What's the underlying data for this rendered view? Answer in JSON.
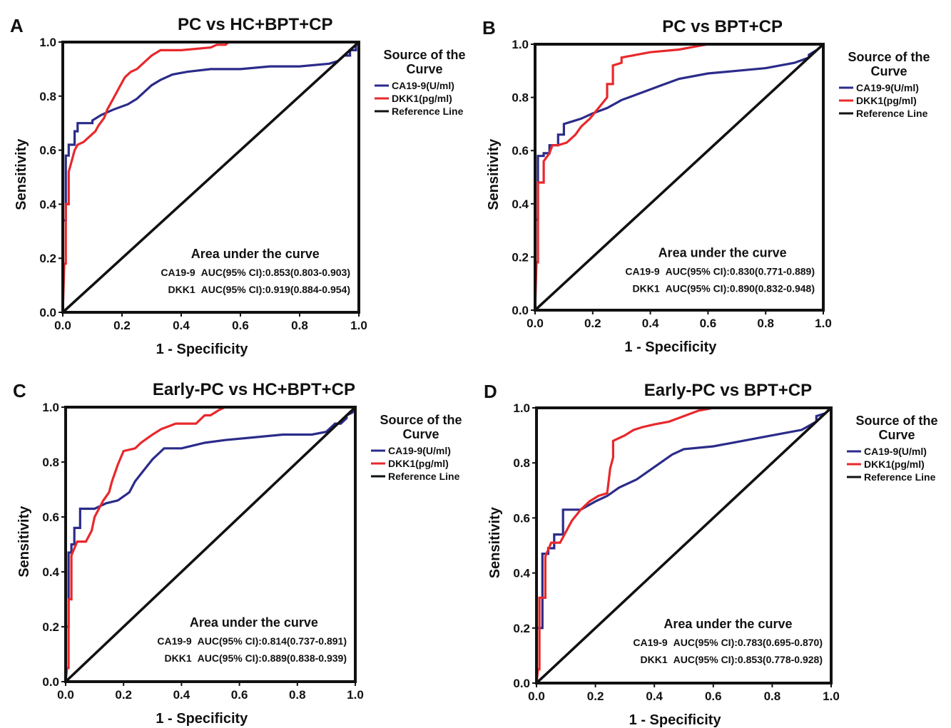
{
  "colors": {
    "ca199": "#2b2b8a",
    "dkk1": "#e8282b",
    "reference": "#111111",
    "frame": "#111111"
  },
  "chart_data": [
    {
      "type": "line",
      "panel": "A",
      "title": "PC vs HC+BPT+CP",
      "xlabel": "1 - Specificity",
      "ylabel": "Sensitivity",
      "xlim": [
        0,
        1
      ],
      "ylim": [
        0,
        1
      ],
      "x_ticks": [
        "0.0",
        "0.2",
        "0.4",
        "0.6",
        "0.8",
        "1.0"
      ],
      "y_ticks": [
        "0.0",
        "0.2",
        "0.4",
        "0.6",
        "0.8",
        "1.0"
      ],
      "legend": {
        "title_line1": "Source of the",
        "title_line2": "Curve",
        "placement": "right",
        "entries": [
          "CA19-9(U/ml)",
          "DKK1(pg/ml)",
          "Reference Line"
        ]
      },
      "auc": {
        "title": "Area under the curve",
        "rows": [
          {
            "marker": "CA19-9",
            "text": "AUC(95% CI):0.853(0.803-0.903)"
          },
          {
            "marker": "DKK1",
            "text": "AUC(95% CI):0.919(0.884-0.954)"
          }
        ]
      },
      "series": [
        {
          "name": "CA19-9(U/ml)",
          "x": [
            0,
            0,
            0.01,
            0.01,
            0.02,
            0.02,
            0.04,
            0.04,
            0.05,
            0.05,
            0.1,
            0.1,
            0.13,
            0.17,
            0.22,
            0.25,
            0.28,
            0.3,
            0.33,
            0.37,
            0.42,
            0.5,
            0.6,
            0.7,
            0.8,
            0.9,
            0.93,
            0.95,
            0.97,
            0.97,
            0.99,
            0.99,
            1
          ],
          "y": [
            0,
            0.34,
            0.34,
            0.58,
            0.58,
            0.62,
            0.62,
            0.67,
            0.67,
            0.7,
            0.7,
            0.71,
            0.73,
            0.75,
            0.77,
            0.79,
            0.82,
            0.84,
            0.86,
            0.88,
            0.89,
            0.9,
            0.9,
            0.91,
            0.91,
            0.92,
            0.93,
            0.95,
            0.95,
            0.97,
            0.97,
            1,
            1
          ]
        },
        {
          "name": "DKK1(pg/ml)",
          "x": [
            0,
            0.005,
            0.01,
            0.01,
            0.02,
            0.02,
            0.03,
            0.04,
            0.05,
            0.07,
            0.09,
            0.11,
            0.12,
            0.14,
            0.15,
            0.17,
            0.19,
            0.21,
            0.23,
            0.25,
            0.27,
            0.3,
            0.33,
            0.4,
            0.5,
            0.52,
            0.55,
            0.56
          ],
          "y": [
            0,
            0.18,
            0.18,
            0.4,
            0.4,
            0.52,
            0.56,
            0.6,
            0.62,
            0.63,
            0.65,
            0.67,
            0.69,
            0.72,
            0.75,
            0.79,
            0.83,
            0.87,
            0.89,
            0.9,
            0.92,
            0.95,
            0.97,
            0.97,
            0.98,
            0.99,
            0.99,
            1
          ]
        },
        {
          "name": "Reference Line",
          "x": [
            0,
            1
          ],
          "y": [
            0,
            1
          ]
        }
      ]
    },
    {
      "type": "line",
      "panel": "B",
      "title": "PC vs BPT+CP",
      "xlabel": "1 - Specificity",
      "ylabel": "Sensitivity",
      "xlim": [
        0,
        1
      ],
      "ylim": [
        0,
        1
      ],
      "x_ticks": [
        "0.0",
        "0.2",
        "0.4",
        "0.6",
        "0.8",
        "1.0"
      ],
      "y_ticks": [
        "0.0",
        "0.2",
        "0.4",
        "0.6",
        "0.8",
        "1.0"
      ],
      "legend": {
        "title_line1": "Source of the",
        "title_line2": "Curve",
        "placement": "right",
        "entries": [
          "CA19-9(U/ml)",
          "DKK1(pg/ml)",
          "Reference Line"
        ]
      },
      "auc": {
        "title": "Area under the curve",
        "rows": [
          {
            "marker": "CA19-9",
            "text": "AUC(95% CI):0.830(0.771-0.889)"
          },
          {
            "marker": "DKK1",
            "text": "AUC(95% CI):0.890(0.832-0.948)"
          }
        ]
      },
      "series": [
        {
          "name": "CA19-9(U/ml)",
          "x": [
            0,
            0,
            0.01,
            0.01,
            0.03,
            0.03,
            0.05,
            0.05,
            0.08,
            0.08,
            0.1,
            0.1,
            0.13,
            0.16,
            0.2,
            0.25,
            0.3,
            0.35,
            0.4,
            0.45,
            0.5,
            0.6,
            0.7,
            0.8,
            0.9,
            0.95,
            0.95,
            0.98,
            1
          ],
          "y": [
            0,
            0.34,
            0.34,
            0.58,
            0.58,
            0.59,
            0.59,
            0.62,
            0.62,
            0.66,
            0.66,
            0.7,
            0.71,
            0.72,
            0.74,
            0.76,
            0.79,
            0.81,
            0.83,
            0.85,
            0.87,
            0.89,
            0.9,
            0.91,
            0.93,
            0.95,
            0.96,
            0.98,
            1
          ]
        },
        {
          "name": "DKK1(pg/ml)",
          "x": [
            0,
            0.005,
            0.01,
            0.01,
            0.03,
            0.03,
            0.05,
            0.06,
            0.08,
            0.11,
            0.14,
            0.16,
            0.19,
            0.22,
            0.25,
            0.25,
            0.27,
            0.27,
            0.3,
            0.3,
            0.4,
            0.5,
            0.55,
            0.6
          ],
          "y": [
            0,
            0.18,
            0.18,
            0.48,
            0.48,
            0.56,
            0.59,
            0.62,
            0.62,
            0.63,
            0.66,
            0.69,
            0.72,
            0.76,
            0.8,
            0.85,
            0.85,
            0.92,
            0.93,
            0.95,
            0.97,
            0.98,
            0.99,
            1
          ]
        },
        {
          "name": "Reference Line",
          "x": [
            0,
            1
          ],
          "y": [
            0,
            1
          ]
        }
      ]
    },
    {
      "type": "line",
      "panel": "C",
      "title": "Early-PC vs HC+BPT+CP",
      "xlabel": "1 - Specificity",
      "ylabel": "Sensitivity",
      "xlim": [
        0,
        1
      ],
      "ylim": [
        0,
        1
      ],
      "x_ticks": [
        "0.0",
        "0.2",
        "0.4",
        "0.6",
        "0.8",
        "1.0"
      ],
      "y_ticks": [
        "0.0",
        "0.2",
        "0.4",
        "0.6",
        "0.8",
        "1.0"
      ],
      "legend": {
        "title_line1": "Source of the",
        "title_line2": "Curve",
        "placement": "right",
        "entries": [
          "CA19-9(U/ml)",
          "DKK1(pg/ml)",
          "Reference Line"
        ]
      },
      "auc": {
        "title": "Area under the curve",
        "rows": [
          {
            "marker": "CA19-9",
            "text": "AUC(95% CI):0.814(0.737-0.891)"
          },
          {
            "marker": "DKK1",
            "text": "AUC(95% CI):0.889(0.838-0.939)"
          }
        ]
      },
      "series": [
        {
          "name": "CA19-9(U/ml)",
          "x": [
            0,
            0,
            0.01,
            0.01,
            0.02,
            0.02,
            0.03,
            0.03,
            0.05,
            0.05,
            0.1,
            0.14,
            0.18,
            0.22,
            0.24,
            0.27,
            0.3,
            0.32,
            0.34,
            0.4,
            0.48,
            0.55,
            0.65,
            0.75,
            0.85,
            0.9,
            0.93,
            0.95,
            0.97,
            0.97,
            0.99,
            1
          ],
          "y": [
            0,
            0.2,
            0.2,
            0.47,
            0.47,
            0.5,
            0.5,
            0.56,
            0.56,
            0.63,
            0.63,
            0.65,
            0.66,
            0.69,
            0.73,
            0.77,
            0.81,
            0.83,
            0.85,
            0.85,
            0.87,
            0.88,
            0.89,
            0.9,
            0.9,
            0.91,
            0.94,
            0.94,
            0.96,
            0.97,
            0.98,
            1
          ]
        },
        {
          "name": "DKK1(pg/ml)",
          "x": [
            0,
            0.005,
            0.01,
            0.01,
            0.02,
            0.02,
            0.04,
            0.07,
            0.09,
            0.1,
            0.12,
            0.13,
            0.15,
            0.16,
            0.18,
            0.2,
            0.24,
            0.26,
            0.3,
            0.33,
            0.38,
            0.45,
            0.48,
            0.5,
            0.53,
            0.55
          ],
          "y": [
            0,
            0.05,
            0.05,
            0.3,
            0.3,
            0.46,
            0.51,
            0.51,
            0.55,
            0.6,
            0.64,
            0.66,
            0.69,
            0.73,
            0.79,
            0.84,
            0.85,
            0.87,
            0.9,
            0.92,
            0.94,
            0.94,
            0.97,
            0.97,
            0.99,
            1
          ]
        },
        {
          "name": "Reference Line",
          "x": [
            0,
            1
          ],
          "y": [
            0,
            1
          ]
        }
      ]
    },
    {
      "type": "line",
      "panel": "D",
      "title": "Early-PC vs BPT+CP",
      "xlabel": "1 - Specificity",
      "ylabel": "Sensitivity",
      "xlim": [
        0,
        1
      ],
      "ylim": [
        0,
        1
      ],
      "x_ticks": [
        "0.0",
        "0.2",
        "0.4",
        "0.6",
        "0.8",
        "1.0"
      ],
      "y_ticks": [
        "0.0",
        "0.2",
        "0.4",
        "0.6",
        "0.8",
        "1.0"
      ],
      "legend": {
        "title_line1": "Source of the",
        "title_line2": "Curve",
        "placement": "right",
        "entries": [
          "CA19-9(U/ml)",
          "DKK1(pg/ml)",
          "Reference Line"
        ]
      },
      "auc": {
        "title": "Area under the curve",
        "rows": [
          {
            "marker": "CA19-9",
            "text": "AUC(95% CI):0.783(0.695-0.870)"
          },
          {
            "marker": "DKK1",
            "text": "AUC(95% CI):0.853(0.778-0.928)"
          }
        ]
      },
      "series": [
        {
          "name": "CA19-9(U/ml)",
          "x": [
            0,
            0,
            0.02,
            0.02,
            0.04,
            0.04,
            0.06,
            0.06,
            0.09,
            0.09,
            0.15,
            0.2,
            0.24,
            0.28,
            0.34,
            0.38,
            0.42,
            0.46,
            0.5,
            0.6,
            0.7,
            0.8,
            0.9,
            0.95,
            0.95,
            0.98,
            1
          ],
          "y": [
            0,
            0.2,
            0.2,
            0.47,
            0.47,
            0.49,
            0.49,
            0.54,
            0.54,
            0.63,
            0.63,
            0.66,
            0.68,
            0.71,
            0.74,
            0.77,
            0.8,
            0.83,
            0.85,
            0.86,
            0.88,
            0.9,
            0.92,
            0.95,
            0.97,
            0.98,
            1
          ]
        },
        {
          "name": "DKK1(pg/ml)",
          "x": [
            0,
            0.005,
            0.01,
            0.01,
            0.03,
            0.03,
            0.05,
            0.08,
            0.1,
            0.12,
            0.15,
            0.18,
            0.21,
            0.24,
            0.25,
            0.26,
            0.26,
            0.3,
            0.33,
            0.36,
            0.4,
            0.45,
            0.5,
            0.55,
            0.6
          ],
          "y": [
            0,
            0.05,
            0.05,
            0.31,
            0.31,
            0.46,
            0.51,
            0.51,
            0.55,
            0.59,
            0.63,
            0.66,
            0.68,
            0.69,
            0.78,
            0.82,
            0.88,
            0.9,
            0.92,
            0.93,
            0.94,
            0.95,
            0.97,
            0.99,
            1
          ]
        },
        {
          "name": "Reference Line",
          "x": [
            0,
            1
          ],
          "y": [
            0,
            1
          ]
        }
      ]
    }
  ]
}
